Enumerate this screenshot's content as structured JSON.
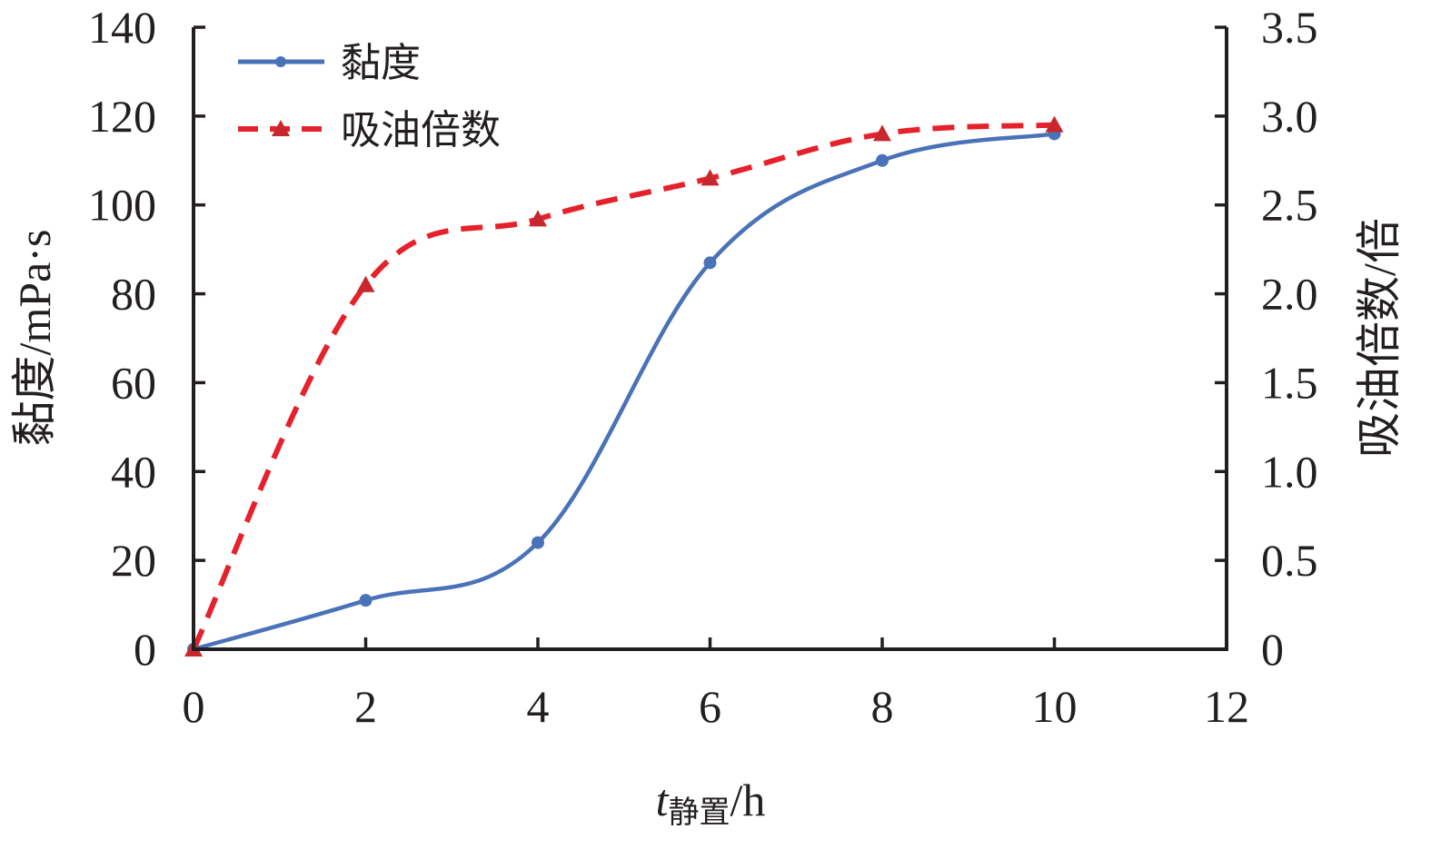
{
  "chart_data": {
    "type": "line",
    "x": [
      0,
      2,
      4,
      6,
      8,
      10
    ],
    "xlim": [
      0,
      12
    ],
    "xticks": [
      "0",
      "2",
      "4",
      "6",
      "8",
      "10",
      "12"
    ],
    "xlabel": {
      "main": "t",
      "subscript": "静置",
      "unit": "/h"
    },
    "ylabel_left": "黏度/mPa·s",
    "ylim_left": [
      0,
      140
    ],
    "yticks_left": [
      "0",
      "20",
      "40",
      "60",
      "80",
      "100",
      "120",
      "140"
    ],
    "ylabel_right": "吸油倍数/倍",
    "ylim_right": [
      0,
      3.5
    ],
    "yticks_right": [
      "0",
      "0.5",
      "1.0",
      "1.5",
      "2.0",
      "2.5",
      "3.0",
      "3.5"
    ],
    "grid": false,
    "legend_position": "top-left",
    "series": [
      {
        "name": "黏度",
        "axis": "left",
        "style": "solid",
        "marker": "circle",
        "color": "#4a72b8",
        "values": [
          0,
          11,
          24,
          87,
          110,
          116
        ]
      },
      {
        "name": "吸油倍数",
        "axis": "right",
        "style": "dashed",
        "marker": "triangle",
        "color": "#e5222c",
        "values": [
          0,
          2.05,
          2.42,
          2.65,
          2.9,
          2.95
        ]
      }
    ]
  }
}
